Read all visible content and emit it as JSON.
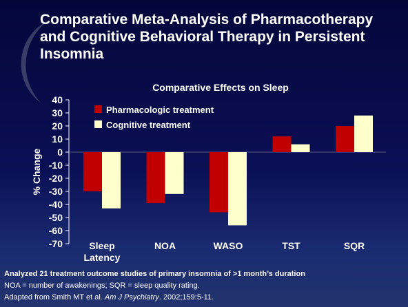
{
  "title": "Comparative Meta-Analysis of Pharmacotherapy and Cognitive Behavioral Therapy in Persistent Insomnia",
  "chart_data": {
    "type": "bar",
    "title": "Comparative Effects on Sleep",
    "y_label": "% Change",
    "categories": [
      "Sleep Latency",
      "NOA",
      "WASO",
      "TST",
      "SQR"
    ],
    "series": [
      {
        "name": "Pharmacologic treatment",
        "color": "#c00000",
        "values": [
          -30,
          -39,
          -46,
          12,
          20
        ]
      },
      {
        "name": "Cognitive treatment",
        "color": "#ffffcc",
        "values": [
          -43,
          -32,
          -56,
          6,
          28
        ]
      }
    ],
    "ylim": [
      -70,
      40
    ],
    "yticks": [
      -70,
      -60,
      -50,
      -40,
      -30,
      -20,
      -10,
      0,
      10,
      20,
      30,
      40
    ],
    "legend": "top-left"
  },
  "footnotes": [
    "Analyzed 21 treatment outcome studies of primary insomnia of >1 month’s duration",
    "NOA = number of awakenings; SQR = sleep quality rating."
  ],
  "citation": [
    "Adapted from Smith MT et al. ",
    "Am J Psychiatry",
    ". 2002;159:5-11."
  ]
}
